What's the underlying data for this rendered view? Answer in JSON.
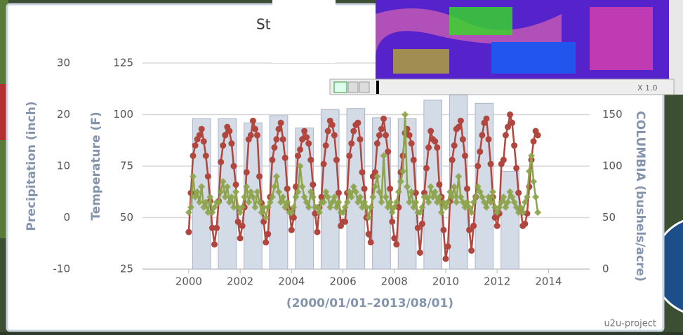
{
  "chart_data": {
    "type": "combo",
    "title": "St",
    "x_label": "(2000/01/01–2013/08/01)",
    "y_label": "Temperature (F)",
    "y2_label": "COLUMBIA (bushels/acre)",
    "y3_label": "Precipitation (inch)",
    "credit": "u2u-project",
    "zoom_label": "X 1.0",
    "xlim": [
      1998.2,
      2015.6
    ],
    "xticks": [
      2000,
      2002,
      2004,
      2006,
      2008,
      2010,
      2012,
      2014
    ],
    "ylim": [
      25,
      125
    ],
    "yticks": [
      25,
      50,
      75,
      100,
      125
    ],
    "y2lim": [
      0,
      200
    ],
    "y2ticks": [
      0,
      50,
      100,
      150
    ],
    "y3lim": [
      -10,
      30
    ],
    "y3ticks": [
      -10,
      0,
      10,
      20,
      30
    ],
    "grid": true,
    "x": [
      "2000-01",
      "2000-02",
      "2000-03",
      "2000-04",
      "2000-05",
      "2000-06",
      "2000-07",
      "2000-08",
      "2000-09",
      "2000-10",
      "2000-11",
      "2000-12",
      "2001-01",
      "2001-02",
      "2001-03",
      "2001-04",
      "2001-05",
      "2001-06",
      "2001-07",
      "2001-08",
      "2001-09",
      "2001-10",
      "2001-11",
      "2001-12",
      "2002-01",
      "2002-02",
      "2002-03",
      "2002-04",
      "2002-05",
      "2002-06",
      "2002-07",
      "2002-08",
      "2002-09",
      "2002-10",
      "2002-11",
      "2002-12",
      "2003-01",
      "2003-02",
      "2003-03",
      "2003-04",
      "2003-05",
      "2003-06",
      "2003-07",
      "2003-08",
      "2003-09",
      "2003-10",
      "2003-11",
      "2003-12",
      "2004-01",
      "2004-02",
      "2004-03",
      "2004-04",
      "2004-05",
      "2004-06",
      "2004-07",
      "2004-08",
      "2004-09",
      "2004-10",
      "2004-11",
      "2004-12",
      "2005-01",
      "2005-02",
      "2005-03",
      "2005-04",
      "2005-05",
      "2005-06",
      "2005-07",
      "2005-08",
      "2005-09",
      "2005-10",
      "2005-11",
      "2005-12",
      "2006-01",
      "2006-02",
      "2006-03",
      "2006-04",
      "2006-05",
      "2006-06",
      "2006-07",
      "2006-08",
      "2006-09",
      "2006-10",
      "2006-11",
      "2006-12",
      "2007-01",
      "2007-02",
      "2007-03",
      "2007-04",
      "2007-05",
      "2007-06",
      "2007-07",
      "2007-08",
      "2007-09",
      "2007-10",
      "2007-11",
      "2007-12",
      "2008-01",
      "2008-02",
      "2008-03",
      "2008-04",
      "2008-05",
      "2008-06",
      "2008-07",
      "2008-08",
      "2008-09",
      "2008-10",
      "2008-11",
      "2008-12",
      "2009-01",
      "2009-02",
      "2009-03",
      "2009-04",
      "2009-05",
      "2009-06",
      "2009-07",
      "2009-08",
      "2009-09",
      "2009-10",
      "2009-11",
      "2009-12",
      "2010-01",
      "2010-02",
      "2010-03",
      "2010-04",
      "2010-05",
      "2010-06",
      "2010-07",
      "2010-08",
      "2010-09",
      "2010-10",
      "2010-11",
      "2010-12",
      "2011-01",
      "2011-02",
      "2011-03",
      "2011-04",
      "2011-05",
      "2011-06",
      "2011-07",
      "2011-08",
      "2011-09",
      "2011-10",
      "2011-11",
      "2011-12",
      "2012-01",
      "2012-02",
      "2012-03",
      "2012-04",
      "2012-05",
      "2012-06",
      "2012-07",
      "2012-08",
      "2012-09",
      "2012-10",
      "2012-11",
      "2012-12",
      "2013-01",
      "2013-02",
      "2013-03",
      "2013-04",
      "2013-05",
      "2013-06",
      "2013-07",
      "2013-08"
    ],
    "series": [
      {
        "kind": "bar",
        "axis": "y2",
        "color": "#d3dbe6",
        "x": [
          2000,
          2001,
          2002,
          2003,
          2004,
          2005,
          2006,
          2007,
          2008,
          2009,
          2010,
          2011,
          2012
        ],
        "values": [
          146,
          146,
          142,
          149,
          137,
          155,
          156,
          147,
          146,
          164,
          169,
          161,
          95
        ]
      },
      {
        "kind": "line",
        "axis": "y",
        "color": "#b0463d",
        "values": [
          43,
          62,
          80,
          85,
          88,
          90,
          93,
          87,
          80,
          70,
          58,
          45,
          37,
          45,
          58,
          77,
          85,
          90,
          94,
          92,
          86,
          75,
          66,
          48,
          40,
          46,
          55,
          72,
          88,
          90,
          97,
          93,
          90,
          70,
          57,
          48,
          38,
          42,
          60,
          78,
          84,
          88,
          93,
          96,
          88,
          79,
          64,
          54,
          44,
          50,
          65,
          80,
          83,
          88,
          92,
          89,
          86,
          78,
          66,
          52,
          43,
          55,
          60,
          76,
          85,
          92,
          97,
          95,
          90,
          78,
          62,
          46,
          48,
          48,
          62,
          80,
          86,
          92,
          95,
          96,
          88,
          72,
          64,
          50,
          42,
          38,
          70,
          72,
          86,
          90,
          93,
          98,
          90,
          82,
          64,
          48,
          40,
          37,
          55,
          72,
          80,
          91,
          93,
          90,
          86,
          78,
          62,
          45,
          33,
          47,
          62,
          74,
          84,
          92,
          88,
          87,
          84,
          66,
          60,
          44,
          30,
          36,
          58,
          78,
          85,
          93,
          94,
          97,
          88,
          80,
          64,
          44,
          34,
          46,
          60,
          75,
          82,
          90,
          96,
          98,
          88,
          76,
          60,
          50,
          46,
          52,
          76,
          78,
          90,
          94,
          100,
          96,
          85,
          74,
          62,
          54,
          46,
          47,
          52,
          65,
          78,
          87,
          92,
          90
        ]
      },
      {
        "kind": "line",
        "axis": "y3",
        "color": "#8ea44c",
        "values": [
          1,
          2,
          8,
          4,
          5,
          3,
          6,
          2,
          3,
          1,
          4,
          1,
          2,
          3,
          3,
          5,
          7,
          4,
          6,
          3,
          4,
          2,
          5,
          2,
          1,
          2,
          4,
          6,
          3,
          5,
          4,
          2,
          5,
          3,
          1,
          2,
          0,
          2,
          3,
          4,
          6,
          8,
          5,
          3,
          4,
          2,
          3,
          1,
          1,
          2,
          4,
          5,
          10,
          6,
          4,
          3,
          2,
          5,
          4,
          2,
          2,
          1,
          3,
          3,
          5,
          4,
          2,
          3,
          4,
          2,
          3,
          1,
          1,
          2,
          3,
          5,
          4,
          6,
          5,
          3,
          4,
          2,
          3,
          2,
          0,
          2,
          4,
          6,
          8,
          5,
          3,
          12,
          4,
          2,
          3,
          1,
          2,
          3,
          5,
          7,
          9,
          20,
          6,
          3,
          5,
          2,
          3,
          1,
          1,
          2,
          4,
          4,
          3,
          6,
          4,
          5,
          3,
          4,
          1,
          3,
          2,
          3,
          5,
          4,
          6,
          3,
          8,
          4,
          3,
          2,
          3,
          2,
          1,
          3,
          4,
          6,
          5,
          4,
          3,
          2,
          4,
          3,
          5,
          2,
          1,
          2,
          3,
          4,
          2,
          3,
          5,
          4,
          3,
          2,
          1,
          2,
          1,
          3,
          4,
          9,
          12,
          7,
          4,
          1
        ]
      }
    ]
  }
}
